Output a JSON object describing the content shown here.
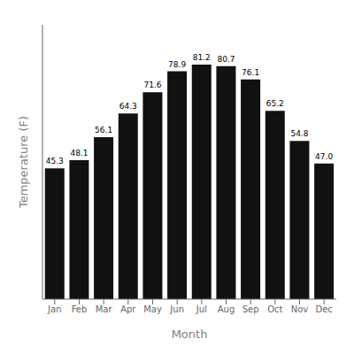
{
  "chart_data": {
    "type": "bar",
    "categories": [
      "Jan",
      "Feb",
      "Mar",
      "Apr",
      "May",
      "Jun",
      "Jul",
      "Aug",
      "Sep",
      "Oct",
      "Nov",
      "Dec"
    ],
    "values": [
      45.3,
      48.1,
      56.1,
      64.3,
      71.6,
      78.9,
      81.2,
      80.7,
      76.1,
      65.2,
      54.8,
      47.0
    ],
    "value_labels": [
      "45.3",
      "48.1",
      "56.1",
      "64.3",
      "71.6",
      "78.9",
      "81.2",
      "80.7",
      "76.1",
      "65.2",
      "54.8",
      "47.0"
    ],
    "color": "#111111",
    "xlabel": "Month",
    "ylabel": "Temperature (F)",
    "ylim": [
      0,
      95
    ],
    "grid": false,
    "data_labels": true,
    "tick_labels": "x"
  }
}
